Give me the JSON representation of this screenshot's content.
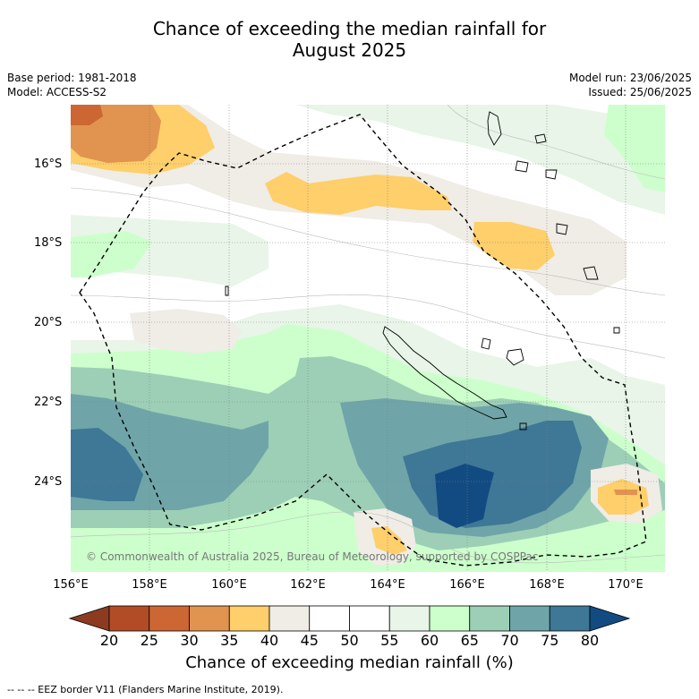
{
  "title": {
    "line1": "Chance of exceeding the median rainfall for",
    "line2": "August 2025"
  },
  "meta": {
    "base_period": "Base period: 1981-2018",
    "model": "Model: ACCESS-S2",
    "model_run": "Model run: 23/06/2025",
    "issued": "Issued: 25/06/2025"
  },
  "map": {
    "lat_labels": [
      "16°S",
      "18°S",
      "20°S",
      "22°S",
      "24°S"
    ],
    "lon_labels": [
      "156°E",
      "158°E",
      "160°E",
      "162°E",
      "164°E",
      "166°E",
      "168°E",
      "170°E"
    ],
    "copyright": "© Commonwealth of Australia 2025, Bureau of Meteorology, supported by COSPPac",
    "eez_line_color": "#000000"
  },
  "colorbar": {
    "ticks": [
      "20",
      "25",
      "30",
      "35",
      "40",
      "45",
      "50",
      "55",
      "60",
      "65",
      "70",
      "75",
      "80"
    ],
    "colors": {
      "lt20": "#8c3b20",
      "c20_25": "#b24c26",
      "c25_30": "#cc6633",
      "c30_35": "#e09450",
      "c35_40": "#fecf6a",
      "c40_45": "#f0ece6",
      "c45_55": "#ffffff",
      "c55_60": "#e8f5e8",
      "c60_65": "#ccffcc",
      "c65_70": "#9ccfb6",
      "c70_75": "#6fa5a8",
      "c75_80": "#3f7796",
      "gt80": "#124b82"
    },
    "title": "Chance of exceeding median rainfall (%)"
  },
  "footer": {
    "legend_text": "--  --  -- EEZ border V11 (Flanders Marine Institute, 2019)."
  }
}
